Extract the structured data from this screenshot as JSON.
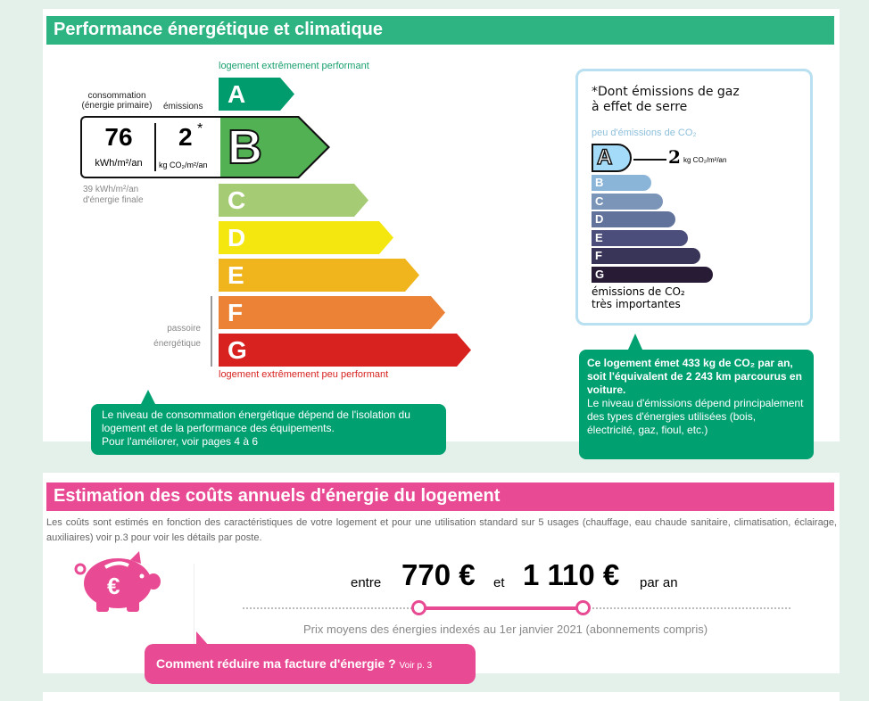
{
  "energy": {
    "title": "Performance énergétique et climatique",
    "top_label": "logement extrêmement performant",
    "bottom_label": "logement extrêmement peu performant",
    "consumption_label": "consommation\n(énergie primaire)",
    "emissions_label": "émissions",
    "consumption_value": "76",
    "consumption_unit": "kWh/m²/an",
    "emissions_value": "2",
    "emissions_star": "*",
    "emissions_unit": "kg CO₂/m²/an",
    "final_energy": "39 kWh/m²/an\nd'énergie finale",
    "passoire": "passoire\nénergétique",
    "current_class": "B",
    "classes": [
      {
        "letter": "A",
        "color": "#009c6d"
      },
      {
        "letter": "B",
        "color": "#52b153"
      },
      {
        "letter": "C",
        "color": "#a5cc74"
      },
      {
        "letter": "D",
        "color": "#f4e70f"
      },
      {
        "letter": "E",
        "color": "#f0b41c"
      },
      {
        "letter": "F",
        "color": "#eb8235"
      },
      {
        "letter": "G",
        "color": "#d7221f"
      }
    ],
    "callout": "Le niveau de consommation énergétique dépend de l'isolation du logement et de la performance des équipements.",
    "callout_link": "Pour l'améliorer, voir pages 4 à 6"
  },
  "ges": {
    "note": "*Dont émissions de gaz\nà effet de serre",
    "top_label": "peu d'émissions de CO₂",
    "bottom_label": "émissions de CO₂\ntrès importantes",
    "current_class": "A",
    "value": "2",
    "unit": "kg CO₂/m²/an",
    "classes": [
      {
        "letter": "A",
        "color": "#a4dbf8"
      },
      {
        "letter": "B",
        "color": "#8ab5d9"
      },
      {
        "letter": "C",
        "color": "#7a95b8"
      },
      {
        "letter": "D",
        "color": "#61739b"
      },
      {
        "letter": "E",
        "color": "#4b4e7a"
      },
      {
        "letter": "F",
        "color": "#393558"
      },
      {
        "letter": "G",
        "color": "#281b35"
      }
    ],
    "callout_bold": "Ce logement émet 433 kg de CO₂ par an, soit l'équivalent de 2 243 km parcourus en voiture.",
    "callout_text": "Le niveau d'émissions dépend principalement des types d'énergies utilisées (bois, électricité, gaz, fioul, etc.)"
  },
  "costs": {
    "title": "Estimation des coûts annuels d'énergie du logement",
    "description": "Les coûts sont estimés en fonction des caractéristiques de votre logement et pour une utilisation standard sur 5 usages (chauffage, eau chaude sanitaire, climatisation, éclairage, auxiliaires) voir p.3 pour voir les détails par poste.",
    "between": "entre",
    "min": "770 €",
    "and": "et",
    "max": "1 110 €",
    "per_year": "par an",
    "prices_note": "Prix moyens des énergies indexés au  1er janvier 2021 (abonnements compris)",
    "cta": "Comment réduire ma facture d'énergie ?",
    "cta_link": "Voir p. 3"
  },
  "colors": {
    "green": "#2db482",
    "pink": "#e84a93",
    "callout_green": "#00a070"
  }
}
